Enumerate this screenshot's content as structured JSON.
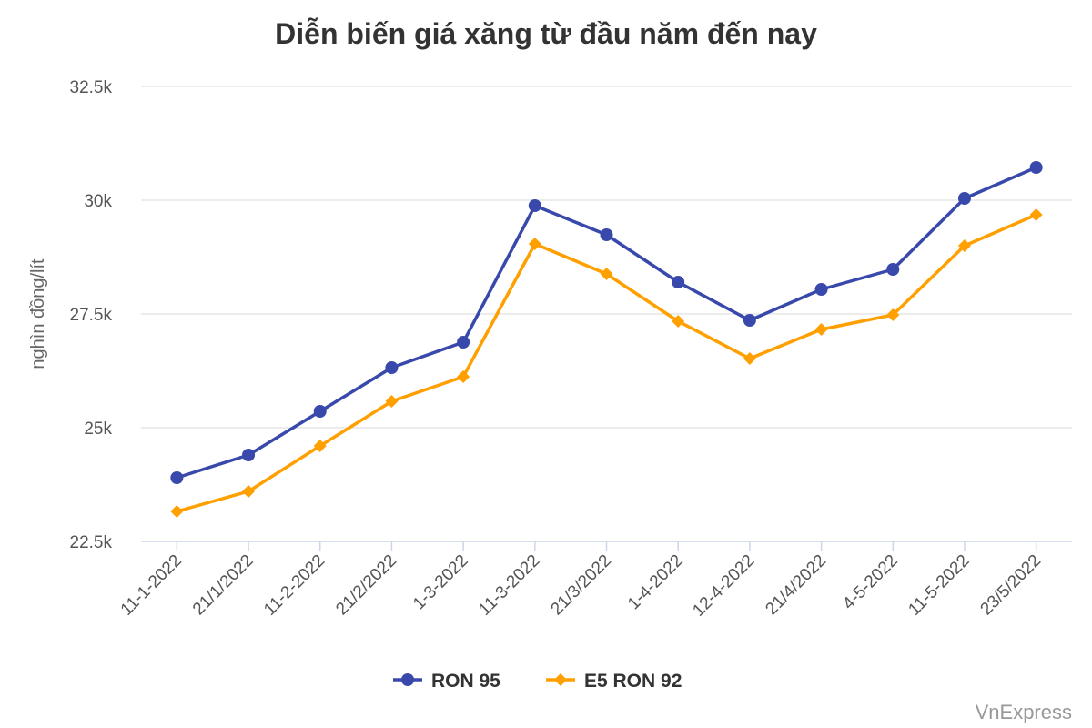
{
  "chart_data": {
    "type": "line",
    "title": "Diễn biến giá xăng từ đầu năm đến nay",
    "xlabel": "",
    "ylabel": "nghìn đồng/lít",
    "ylim": [
      22500,
      32500
    ],
    "yticks": [
      22500,
      25000,
      27500,
      30000,
      32500
    ],
    "ytick_labels": [
      "22.5k",
      "25k",
      "27.5k",
      "30k",
      "32.5k"
    ],
    "grid": true,
    "legend_position": "bottom",
    "categories": [
      "11-1-2022",
      "21/1/2022",
      "11-2-2022",
      "21/2/2022",
      "1-3-2022",
      "11-3-2022",
      "21/3/2022",
      "1-4-2022",
      "12-4-2022",
      "21/4/2022",
      "4-5-2022",
      "11-5-2022",
      "23/5/2022"
    ],
    "series": [
      {
        "name": "RON 95",
        "color": "#3949ab",
        "marker": "circle",
        "values": [
          23900,
          24400,
          25360,
          26320,
          26880,
          29880,
          29240,
          28200,
          27360,
          28040,
          28480,
          30040,
          30720
        ]
      },
      {
        "name": "E5 RON 92",
        "color": "#ffa000",
        "marker": "diamond",
        "values": [
          23160,
          23600,
          24600,
          25580,
          26120,
          29040,
          28380,
          27340,
          26520,
          27160,
          27480,
          29000,
          29680
        ]
      }
    ]
  },
  "credit": "VnExpress"
}
